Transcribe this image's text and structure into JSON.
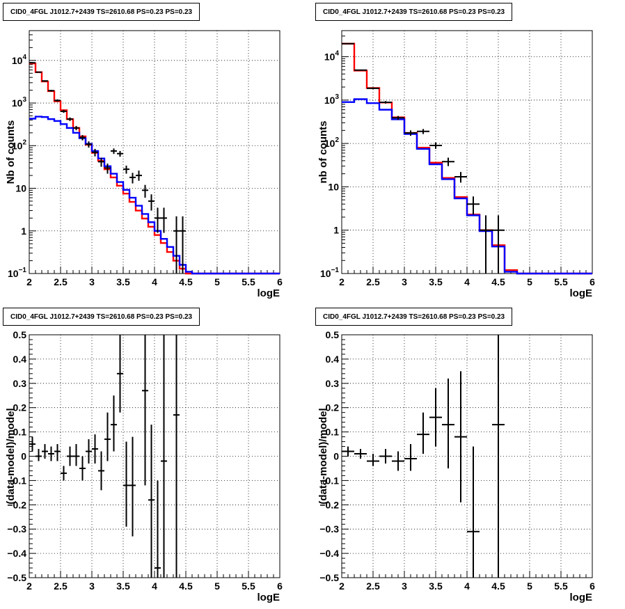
{
  "chart_data": [
    {
      "type": "line",
      "title": "CID0_4FGL J1012.7+2439 TS=2610.68 PS=0.23 PS=0.23",
      "xlabel": "logE",
      "ylabel": "Nb of counts",
      "xlim": [
        2,
        6
      ],
      "ylim": [
        0.1,
        50000
      ],
      "yscale": "log",
      "grid": true,
      "xticks": [
        "2",
        "2.5",
        "3",
        "3.5",
        "4",
        "4.5",
        "5",
        "5.5",
        "6"
      ],
      "yticks": [
        {
          "v": 0.1,
          "label": "10",
          "sup": "−1"
        },
        {
          "v": 1,
          "label": "1",
          "sup": ""
        },
        {
          "v": 10,
          "label": "10",
          "sup": ""
        },
        {
          "v": 100,
          "label": "10",
          "sup": "2"
        },
        {
          "v": 1000,
          "label": "10",
          "sup": "3"
        },
        {
          "v": 10000,
          "label": "10",
          "sup": "4"
        }
      ],
      "bin_edges": [
        2.0,
        2.1,
        2.2,
        2.3,
        2.4,
        2.5,
        2.6,
        2.7,
        2.8,
        2.9,
        3.0,
        3.1,
        3.2,
        3.3,
        3.4,
        3.5,
        3.6,
        3.7,
        3.8,
        3.9,
        4.0,
        4.1,
        4.2,
        4.3,
        4.4,
        4.5,
        4.6,
        4.7,
        4.8,
        4.9,
        5.0,
        5.1,
        5.2,
        5.3,
        5.4,
        5.5,
        5.6,
        5.7,
        5.8,
        5.9,
        6.0
      ],
      "series": [
        {
          "color": "#ff0000",
          "values": [
            8500,
            5300,
            3200,
            1900,
            1100,
            680,
            420,
            260,
            165,
            105,
            68,
            44,
            28,
            18,
            11.5,
            7.5,
            4.8,
            3.0,
            1.95,
            1.25,
            0.8,
            0.52,
            0.32,
            0.2,
            0.13,
            0.1,
            0.1,
            0.1,
            0.1,
            0.1,
            0.1,
            0.1,
            0.1,
            0.1,
            0.1,
            0.1,
            0.1,
            0.1,
            0.1,
            0.1
          ]
        },
        {
          "color": "#0000ff",
          "values": [
            430,
            480,
            470,
            420,
            380,
            320,
            260,
            200,
            150,
            110,
            75,
            50,
            33,
            22,
            14,
            9.2,
            6.0,
            3.9,
            2.5,
            1.6,
            1.0,
            0.65,
            0.42,
            0.26,
            0.16,
            0.11,
            0.1,
            0.1,
            0.1,
            0.1,
            0.1,
            0.1,
            0.1,
            0.1,
            0.1,
            0.1,
            0.1,
            0.1,
            0.1,
            0.1
          ]
        }
      ],
      "points": [
        {
          "x": 2.05,
          "y": 8800,
          "lo": 8600,
          "hi": 9000
        },
        {
          "x": 2.15,
          "y": 5300,
          "lo": 5150,
          "hi": 5450
        },
        {
          "x": 2.25,
          "y": 3300,
          "lo": 3180,
          "hi": 3420
        },
        {
          "x": 2.35,
          "y": 1950,
          "lo": 1860,
          "hi": 2040
        },
        {
          "x": 2.45,
          "y": 1150,
          "lo": 1080,
          "hi": 1220
        },
        {
          "x": 2.55,
          "y": 640,
          "lo": 590,
          "hi": 690
        },
        {
          "x": 2.65,
          "y": 420,
          "lo": 380,
          "hi": 460
        },
        {
          "x": 2.75,
          "y": 260,
          "lo": 230,
          "hi": 290
        },
        {
          "x": 2.85,
          "y": 155,
          "lo": 133,
          "hi": 177
        },
        {
          "x": 2.95,
          "y": 108,
          "lo": 90,
          "hi": 126
        },
        {
          "x": 3.05,
          "y": 70,
          "lo": 56,
          "hi": 84
        },
        {
          "x": 3.15,
          "y": 42,
          "lo": 32,
          "hi": 52
        },
        {
          "x": 3.25,
          "y": 30,
          "lo": 22,
          "hi": 38
        },
        {
          "x": 3.35,
          "y": 75,
          "lo": 64,
          "hi": 86
        },
        {
          "x": 3.45,
          "y": 65,
          "lo": 55,
          "hi": 75
        },
        {
          "x": 3.55,
          "y": 28,
          "lo": 22,
          "hi": 34
        },
        {
          "x": 3.65,
          "y": 18,
          "lo": 13,
          "hi": 23
        },
        {
          "x": 3.75,
          "y": 20,
          "lo": 15,
          "hi": 26
        },
        {
          "x": 3.85,
          "y": 9,
          "lo": 6,
          "hi": 12
        },
        {
          "x": 3.95,
          "y": 5,
          "lo": 3,
          "hi": 7.2
        },
        {
          "x": 4.05,
          "y": 2,
          "lo": 0.9,
          "hi": 3.5
        },
        {
          "x": 4.15,
          "y": 2,
          "lo": 0.9,
          "hi": 3.5
        },
        {
          "x": 4.35,
          "y": 1,
          "lo": 0.1,
          "hi": 2.2
        },
        {
          "x": 4.45,
          "y": 1,
          "lo": 0.1,
          "hi": 2.2
        }
      ]
    },
    {
      "type": "line",
      "title": "CID0_4FGL J1012.7+2439 TS=2610.68 PS=0.23 PS=0.23",
      "xlabel": "logE",
      "ylabel": "nb of counts",
      "xlim": [
        2,
        6
      ],
      "ylim": [
        0.1,
        40000
      ],
      "yscale": "log",
      "grid": true,
      "xticks": [
        "2",
        "2.5",
        "3",
        "3.5",
        "4",
        "4.5",
        "5",
        "5.5",
        "6"
      ],
      "yticks": [
        {
          "v": 0.1,
          "label": "10",
          "sup": "−1"
        },
        {
          "v": 1,
          "label": "1",
          "sup": ""
        },
        {
          "v": 10,
          "label": "10",
          "sup": ""
        },
        {
          "v": 100,
          "label": "10",
          "sup": "2"
        },
        {
          "v": 1000,
          "label": "10",
          "sup": "3"
        },
        {
          "v": 10000,
          "label": "10",
          "sup": "4"
        }
      ],
      "bin_edges": [
        2.0,
        2.2,
        2.4,
        2.6,
        2.8,
        3.0,
        3.2,
        3.4,
        3.6,
        3.8,
        4.0,
        4.2,
        4.4,
        4.6,
        4.8,
        5.0,
        5.2,
        5.4,
        5.6,
        5.8,
        6.0
      ],
      "series": [
        {
          "color": "#ff0000",
          "values": [
            20000,
            4800,
            1900,
            880,
            400,
            175,
            80,
            36,
            16,
            5.8,
            2.3,
            1.0,
            0.45,
            0.12,
            0.1,
            0.1,
            0.1,
            0.1,
            0.1,
            0.1
          ]
        },
        {
          "color": "#0000ff",
          "values": [
            900,
            1050,
            850,
            600,
            360,
            165,
            75,
            33,
            15,
            5.4,
            2.2,
            0.95,
            0.42,
            0.11,
            0.1,
            0.1,
            0.1,
            0.1,
            0.1,
            0.1
          ]
        }
      ],
      "points": [
        {
          "x": 2.1,
          "y": 20000,
          "lo": 19700,
          "hi": 20300
        },
        {
          "x": 2.3,
          "y": 4900,
          "lo": 4760,
          "hi": 5040
        },
        {
          "x": 2.5,
          "y": 1870,
          "lo": 1780,
          "hi": 1960
        },
        {
          "x": 2.7,
          "y": 890,
          "lo": 830,
          "hi": 950
        },
        {
          "x": 2.9,
          "y": 390,
          "lo": 350,
          "hi": 430
        },
        {
          "x": 3.1,
          "y": 175,
          "lo": 150,
          "hi": 200
        },
        {
          "x": 3.3,
          "y": 190,
          "lo": 165,
          "hi": 215
        },
        {
          "x": 3.5,
          "y": 90,
          "lo": 75,
          "hi": 105
        },
        {
          "x": 3.7,
          "y": 38,
          "lo": 30,
          "hi": 47
        },
        {
          "x": 3.9,
          "y": 17,
          "lo": 12.5,
          "hi": 22
        },
        {
          "x": 4.1,
          "y": 4,
          "lo": 2.3,
          "hi": 6
        },
        {
          "x": 4.3,
          "y": 1,
          "lo": 0.1,
          "hi": 2.2
        },
        {
          "x": 4.5,
          "y": 1,
          "lo": 0.1,
          "hi": 2.2
        }
      ]
    },
    {
      "type": "scatter",
      "title": "CID0_4FGL J1012.7+2439 TS=2610.68 PS=0.23 PS=0.23",
      "xlabel": "logE",
      "ylabel": "(data-model)/model",
      "xlim": [
        2,
        6
      ],
      "ylim": [
        -0.5,
        0.5
      ],
      "yscale": "linear",
      "grid": true,
      "xticks": [
        "2",
        "2.5",
        "3",
        "3.5",
        "4",
        "4.5",
        "5",
        "5.5",
        "6"
      ],
      "yticks": [
        {
          "v": -0.5,
          "label": "−0.5",
          "sup": ""
        },
        {
          "v": -0.4,
          "label": "−0.4",
          "sup": ""
        },
        {
          "v": -0.3,
          "label": "−0.3",
          "sup": ""
        },
        {
          "v": -0.2,
          "label": "−0.2",
          "sup": ""
        },
        {
          "v": -0.1,
          "label": "−0.1",
          "sup": ""
        },
        {
          "v": 0,
          "label": "0",
          "sup": ""
        },
        {
          "v": 0.1,
          "label": "0.1",
          "sup": ""
        },
        {
          "v": 0.2,
          "label": "0.2",
          "sup": ""
        },
        {
          "v": 0.3,
          "label": "0.3",
          "sup": ""
        },
        {
          "v": 0.4,
          "label": "0.4",
          "sup": ""
        },
        {
          "v": 0.5,
          "label": "0.5",
          "sup": ""
        }
      ],
      "xerr": 0.05,
      "points": [
        {
          "x": 2.05,
          "y": 0.05,
          "lo": 0.02,
          "hi": 0.08
        },
        {
          "x": 2.15,
          "y": 0.0,
          "lo": -0.02,
          "hi": 0.03
        },
        {
          "x": 2.25,
          "y": 0.02,
          "lo": -0.01,
          "hi": 0.05
        },
        {
          "x": 2.35,
          "y": 0.01,
          "lo": -0.02,
          "hi": 0.04
        },
        {
          "x": 2.45,
          "y": 0.02,
          "lo": -0.02,
          "hi": 0.05
        },
        {
          "x": 2.55,
          "y": -0.07,
          "lo": -0.1,
          "hi": -0.04
        },
        {
          "x": 2.65,
          "y": 0.0,
          "lo": -0.04,
          "hi": 0.04
        },
        {
          "x": 2.75,
          "y": 0.0,
          "lo": -0.04,
          "hi": 0.05
        },
        {
          "x": 2.85,
          "y": -0.05,
          "lo": -0.1,
          "hi": 0.0
        },
        {
          "x": 2.95,
          "y": 0.02,
          "lo": -0.03,
          "hi": 0.07
        },
        {
          "x": 3.05,
          "y": 0.03,
          "lo": -0.03,
          "hi": 0.09
        },
        {
          "x": 3.15,
          "y": -0.06,
          "lo": -0.14,
          "hi": 0.02
        },
        {
          "x": 3.25,
          "y": 0.07,
          "lo": -0.02,
          "hi": 0.18
        },
        {
          "x": 3.35,
          "y": 0.13,
          "lo": 0.02,
          "hi": 0.25
        },
        {
          "x": 3.45,
          "y": 0.34,
          "lo": 0.18,
          "hi": 0.5
        },
        {
          "x": 3.55,
          "y": -0.12,
          "lo": -0.29,
          "hi": 0.06
        },
        {
          "x": 3.65,
          "y": -0.12,
          "lo": -0.33,
          "hi": 0.08
        },
        {
          "x": 3.85,
          "y": 0.27,
          "lo": -0.12,
          "hi": 0.5
        },
        {
          "x": 3.95,
          "y": -0.18,
          "lo": -0.5,
          "hi": 0.13
        },
        {
          "x": 4.05,
          "y": -0.46,
          "lo": -0.5,
          "hi": -0.1
        },
        {
          "x": 4.15,
          "y": -0.02,
          "lo": -0.5,
          "hi": 0.5
        },
        {
          "x": 4.35,
          "y": 0.17,
          "lo": -0.5,
          "hi": 0.5
        }
      ]
    },
    {
      "type": "scatter",
      "title": "CID0_4FGL J1012.7+2439 TS=2610.68 PS=0.23 PS=0.23",
      "xlabel": "logE",
      "ylabel": "(data-model)/model",
      "xlim": [
        2,
        6
      ],
      "ylim": [
        -0.5,
        0.5
      ],
      "yscale": "linear",
      "grid": true,
      "xticks": [
        "2",
        "2.5",
        "3",
        "3.5",
        "4",
        "4.5",
        "5",
        "5.5",
        "6"
      ],
      "yticks": [
        {
          "v": -0.5,
          "label": "−0.5",
          "sup": ""
        },
        {
          "v": -0.4,
          "label": "−0.4",
          "sup": ""
        },
        {
          "v": -0.3,
          "label": "−0.3",
          "sup": ""
        },
        {
          "v": -0.2,
          "label": "−0.2",
          "sup": ""
        },
        {
          "v": -0.1,
          "label": "−0.1",
          "sup": ""
        },
        {
          "v": 0,
          "label": "0",
          "sup": ""
        },
        {
          "v": 0.1,
          "label": "0.1",
          "sup": ""
        },
        {
          "v": 0.2,
          "label": "0.2",
          "sup": ""
        },
        {
          "v": 0.3,
          "label": "0.3",
          "sup": ""
        },
        {
          "v": 0.4,
          "label": "0.4",
          "sup": ""
        },
        {
          "v": 0.5,
          "label": "0.5",
          "sup": ""
        }
      ],
      "xerr": 0.1,
      "points": [
        {
          "x": 2.1,
          "y": 0.02,
          "lo": 0.0,
          "hi": 0.04
        },
        {
          "x": 2.3,
          "y": 0.01,
          "lo": -0.01,
          "hi": 0.03
        },
        {
          "x": 2.5,
          "y": -0.02,
          "lo": -0.04,
          "hi": 0.01
        },
        {
          "x": 2.7,
          "y": 0.0,
          "lo": -0.03,
          "hi": 0.03
        },
        {
          "x": 2.9,
          "y": -0.02,
          "lo": -0.06,
          "hi": 0.02
        },
        {
          "x": 3.1,
          "y": -0.01,
          "lo": -0.06,
          "hi": 0.05
        },
        {
          "x": 3.3,
          "y": 0.09,
          "lo": 0.01,
          "hi": 0.18
        },
        {
          "x": 3.5,
          "y": 0.16,
          "lo": 0.04,
          "hi": 0.28
        },
        {
          "x": 3.7,
          "y": 0.13,
          "lo": -0.05,
          "hi": 0.32
        },
        {
          "x": 3.9,
          "y": 0.08,
          "lo": -0.19,
          "hi": 0.35
        },
        {
          "x": 4.1,
          "y": -0.31,
          "lo": -0.5,
          "hi": 0.04
        },
        {
          "x": 4.5,
          "y": 0.13,
          "lo": -0.5,
          "hi": 0.5
        }
      ]
    }
  ]
}
